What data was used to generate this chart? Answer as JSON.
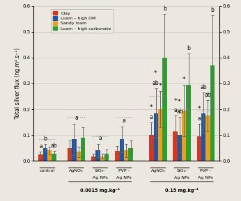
{
  "group_labels_line1": [
    "control",
    "AgNO₃",
    "SiO₂-",
    "PVP -",
    "AgNO₃",
    "SiO₂-",
    "PVP -"
  ],
  "group_labels_line2": [
    "",
    "",
    "Ag NPs",
    "Ag NPs",
    "",
    "Ag NPs",
    "Ag NPs"
  ],
  "dose_labels": [
    "0.0015 mg.kg⁻¹",
    "0.15 mg.kg⁻¹"
  ],
  "colors": [
    "#d9341c",
    "#2255a0",
    "#e8a020",
    "#2e9e30"
  ],
  "legend_labels": [
    "Clay",
    "Loam – high OM",
    "Sandy loam",
    "Loam – high carbonate"
  ],
  "bar_values": [
    [
      0.025,
      0.05,
      0.04,
      0.028
    ],
    [
      0.05,
      0.083,
      0.035,
      0.09
    ],
    [
      0.018,
      0.04,
      0.018,
      0.028
    ],
    [
      0.038,
      0.083,
      0.04,
      0.05
    ],
    [
      0.1,
      0.185,
      0.2,
      0.4
    ],
    [
      0.115,
      0.1,
      0.195,
      0.295
    ],
    [
      0.095,
      0.185,
      0.175,
      0.37
    ]
  ],
  "bar_errors": [
    [
      0.01,
      0.015,
      0.015,
      0.01
    ],
    [
      0.03,
      0.06,
      0.02,
      0.04
    ],
    [
      0.01,
      0.025,
      0.01,
      0.015
    ],
    [
      0.018,
      0.05,
      0.025,
      0.03
    ],
    [
      0.05,
      0.095,
      0.07,
      0.17
    ],
    [
      0.06,
      0.07,
      0.1,
      0.12
    ],
    [
      0.048,
      0.08,
      0.06,
      0.195
    ]
  ],
  "dotted_line_values": [
    0.083,
    0.17,
    0.095,
    0.17,
    0.25,
    0.2,
    0.195
  ],
  "ylim": [
    0.0,
    0.6
  ],
  "yticks": [
    0.0,
    0.1,
    0.2,
    0.3,
    0.4,
    0.5,
    0.6
  ],
  "ylabel": "Total silver flux (ng.m².s⁻¹)",
  "background_color": "#ede8df"
}
